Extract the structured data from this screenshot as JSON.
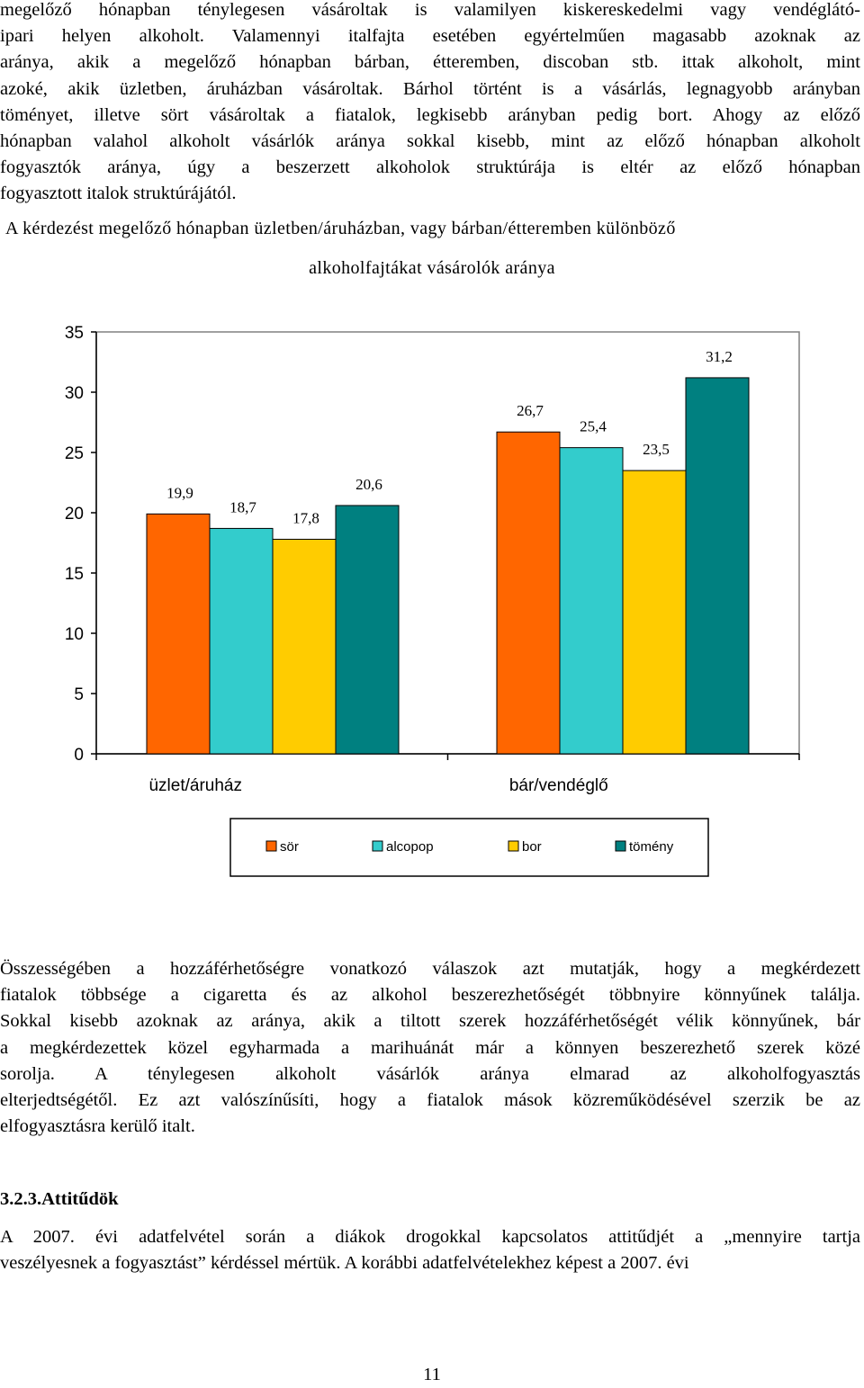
{
  "paragraph1_lines": [
    "megelőző hónapban ténylegesen vásároltak is valamilyen kiskereskedelmi vagy vendéglátó-",
    "ipari helyen alkoholt. Valamennyi italfajta esetében egyértelműen magasabb azoknak az",
    "aránya, akik a megelőző hónapban bárban, étteremben, discoban stb. ittak alkoholt, mint",
    "azoké, akik üzletben, áruházban vásároltak. Bárhol történt is a vásárlás, legnagyobb arányban",
    "töményet, illetve sört vásároltak a fiatalok, legkisebb arányban pedig bort. Ahogy az előző",
    "hónapban valahol alkoholt vásárlók aránya sokkal kisebb, mint az előző hónapban alkoholt",
    "fogyasztók aránya, úgy a beszerzett alkoholok struktúrája is eltér az előző hónapban",
    "fogyasztott italok struktúrájától."
  ],
  "chart_data": {
    "type": "bar",
    "title_line1": "A kérdezést megelőző hónapban üzletben/áruházban, vagy bárban/étteremben különböző",
    "title_line2": "alkoholfajtákat vásárolók aránya",
    "categories": [
      "üzlet/áruház",
      "bár/vendéglő"
    ],
    "series": [
      {
        "name": "sör",
        "color": "#ff6600",
        "values": [
          19.9,
          26.7
        ],
        "labels": [
          "19,9",
          "26,7"
        ]
      },
      {
        "name": "alcopop",
        "color": "#33cccc",
        "values": [
          18.7,
          25.4
        ],
        "labels": [
          "18,7",
          "25,4"
        ]
      },
      {
        "name": "bor",
        "color": "#ffcc00",
        "values": [
          17.8,
          23.5
        ],
        "labels": [
          "17,8",
          "23,5"
        ]
      },
      {
        "name": "tömény",
        "color": "#008080",
        "values": [
          20.6,
          31.2
        ],
        "labels": [
          "20,6",
          "31,2"
        ]
      }
    ],
    "ylim": [
      0,
      35
    ],
    "yticks": [
      "0",
      "5",
      "10",
      "15",
      "20",
      "25",
      "30",
      "35"
    ],
    "legend_position": "bottom",
    "grid": false
  },
  "paragraph2_lines": [
    "Összességében a hozzáférhetőségre vonatkozó válaszok azt mutatják, hogy a megkérdezett",
    "fiatalok többsége a cigaretta és az alkohol beszerezhetőségét többnyire könnyűnek találja.",
    "Sokkal kisebb azoknak az aránya, akik a tiltott szerek hozzáférhetőségét vélik könnyűnek, bár",
    "a megkérdezettek közel egyharmada a marihuánát már a könnyen beszerezhető szerek közé",
    "sorolja. A ténylegesen alkoholt vásárlók aránya elmarad az alkoholfogyasztás",
    "elterjedtségétől. Ez azt valószínűsíti, hogy a fiatalok mások közreműködésével szerzik be az",
    "elfogyasztásra kerülő italt."
  ],
  "section_heading": "3.2.3.Attitűdök",
  "paragraph3_lines": [
    "A 2007. évi adatfelvétel során a diákok drogokkal kapcsolatos attitűdjét a „mennyire tartja",
    "veszélyesnek a fogyasztást” kérdéssel mértük. A korábbi adatfelvételekhez képest a 2007. évi"
  ],
  "page_number": "11"
}
